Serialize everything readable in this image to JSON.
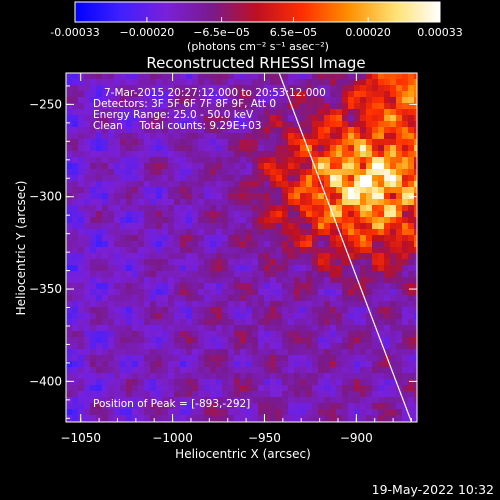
{
  "chart_data": {
    "type": "heatmap",
    "title": "Reconstructed RHESSI Image",
    "xlabel": "Heliocentric X (arcsec)",
    "ylabel": "Heliocentric Y (arcsec)",
    "xlim": [
      -1058,
      -867
    ],
    "ylim": [
      -422,
      -233
    ],
    "xticks": [
      -1050,
      -1000,
      -950,
      -900
    ],
    "yticks": [
      -400,
      -350,
      -300,
      -250
    ],
    "colorbar": {
      "unit_label": "(photons cm⁻² s⁻¹ asec⁻²)",
      "range": [
        -0.00033,
        0.00033
      ],
      "tick_values": [
        -0.00033,
        -0.0002,
        -6.5e-05,
        6.5e-05,
        0.0002,
        0.00033
      ],
      "tick_labels": [
        "-0.00033",
        "−0.00020",
        "−6.5e−05",
        "6.5e−05",
        "0.00020",
        "0.00033"
      ],
      "colors": [
        "#0000ff",
        "#4020ff",
        "#7a20d8",
        "#7a1a8a",
        "#c01020",
        "#ff3000",
        "#ff9000",
        "#ffe070",
        "#ffffff"
      ]
    },
    "info_lines": [
      "7-Mar-2015 20:27:12.000 to 20:53:12.000",
      "Detectors: 3F 5F 6F 7F 8F 9F, Att 0",
      "Energy Range: 25.0 - 50.0 keV",
      "Clean     Total counts: 9.29E+03"
    ],
    "peak": {
      "label": "Position of Peak = [-893,-292]",
      "x": -893,
      "y": -292
    },
    "limb_line": [
      [
        -942,
        -233
      ],
      [
        -870,
        -422
      ]
    ],
    "grid": false
  },
  "footer": {
    "timestamp": "19-May-2022 10:32"
  }
}
